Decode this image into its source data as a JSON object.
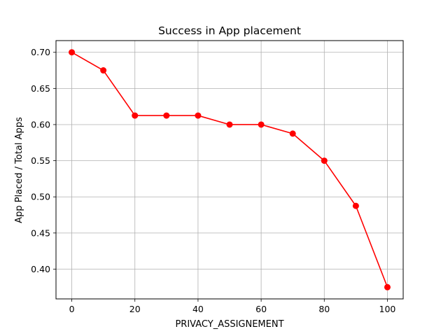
{
  "chart_data": {
    "type": "line",
    "title": "Success in App placement",
    "xlabel": "PRIVACY_ASSIGNEMENT",
    "ylabel": "App Placed / Total Apps",
    "xlim": [
      -5,
      105
    ],
    "ylim": [
      0.3588,
      0.7162
    ],
    "x_ticks": [
      0,
      20,
      40,
      60,
      80,
      100
    ],
    "x_tick_labels": [
      "0",
      "20",
      "40",
      "60",
      "80",
      "100"
    ],
    "y_ticks": [
      0.4,
      0.45,
      0.5,
      0.55,
      0.6,
      0.65,
      0.7
    ],
    "y_tick_labels": [
      "0.40",
      "0.45",
      "0.50",
      "0.55",
      "0.60",
      "0.65",
      "0.70"
    ],
    "grid": true,
    "legend": "none",
    "series": [
      {
        "color": "#ff0000",
        "marker": "circle",
        "x": [
          0,
          10,
          20,
          30,
          40,
          50,
          60,
          70,
          80,
          90,
          100
        ],
        "y": [
          0.7,
          0.675,
          0.6125,
          0.6125,
          0.6125,
          0.6,
          0.6,
          0.5875,
          0.55,
          0.4875,
          0.375
        ]
      }
    ]
  }
}
